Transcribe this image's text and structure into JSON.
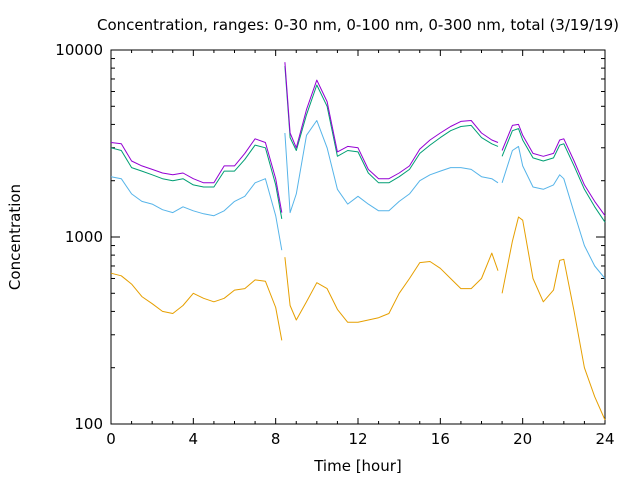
{
  "chart_data": {
    "type": "line",
    "title": "Concentration, ranges: 0-30 nm, 0-100 nm, 0-300 nm, total (3/19/19)",
    "xlabel": "Time [hour]",
    "ylabel": "Concentration",
    "xlim": [
      0,
      24
    ],
    "ylim": [
      100,
      10000
    ],
    "yscale": "log",
    "grid": false,
    "x_ticks": [
      "0",
      "4",
      "8",
      "12",
      "16",
      "20",
      "24"
    ],
    "y_ticks": [
      "100",
      "1000",
      "10000"
    ],
    "colors": {
      "range_0_30": "#e69f00",
      "range_0_100": "#56b4e9",
      "range_0_300": "#009e73",
      "total": "#9400d3"
    },
    "series": [
      {
        "color_key": "range_0_30",
        "x": [
          0,
          0.5,
          1,
          1.5,
          2,
          2.5,
          3,
          3.5,
          4,
          4.5,
          5,
          5.5,
          6,
          6.5,
          7,
          7.5,
          8,
          8.3,
          null,
          8.45,
          8.7,
          9,
          9.5,
          10,
          10.5,
          11,
          11.5,
          12,
          12.5,
          13,
          13.5,
          14,
          14.5,
          15,
          15.5,
          16,
          16.5,
          17,
          17.5,
          18,
          18.5,
          18.8,
          null,
          19,
          19.5,
          19.8,
          20,
          20.5,
          21,
          21.5,
          21.8,
          22,
          22.5,
          23,
          23.5,
          24
        ],
        "y": [
          640,
          620,
          560,
          480,
          440,
          400,
          390,
          430,
          500,
          470,
          450,
          470,
          520,
          530,
          590,
          580,
          420,
          280,
          null,
          780,
          430,
          360,
          450,
          570,
          530,
          410,
          350,
          350,
          360,
          370,
          390,
          500,
          600,
          730,
          740,
          680,
          600,
          530,
          530,
          600,
          820,
          660,
          null,
          500,
          950,
          1280,
          1230,
          600,
          450,
          520,
          750,
          760,
          400,
          200,
          140,
          105
        ]
      },
      {
        "color_key": "range_0_100",
        "x": [
          0,
          0.5,
          1,
          1.5,
          2,
          2.5,
          3,
          3.5,
          4,
          4.5,
          5,
          5.5,
          6,
          6.5,
          7,
          7.5,
          8,
          8.3,
          null,
          8.45,
          8.7,
          9,
          9.5,
          10,
          10.5,
          11,
          11.5,
          12,
          12.5,
          13,
          13.5,
          14,
          14.5,
          15,
          15.5,
          16,
          16.5,
          17,
          17.5,
          18,
          18.5,
          18.8,
          null,
          19,
          19.5,
          19.8,
          20,
          20.5,
          21,
          21.5,
          21.8,
          22,
          22.5,
          23,
          23.5,
          24
        ],
        "y": [
          2100,
          2050,
          1700,
          1550,
          1500,
          1400,
          1350,
          1450,
          1380,
          1330,
          1300,
          1380,
          1550,
          1650,
          1950,
          2050,
          1300,
          850,
          null,
          3600,
          1350,
          1700,
          3500,
          4200,
          3000,
          1800,
          1500,
          1650,
          1500,
          1380,
          1380,
          1550,
          1700,
          2000,
          2150,
          2250,
          2350,
          2350,
          2300,
          2100,
          2050,
          1950,
          null,
          1950,
          2900,
          3050,
          2400,
          1850,
          1800,
          1900,
          2150,
          2050,
          1350,
          900,
          700,
          600
        ]
      },
      {
        "color_key": "range_0_300",
        "x": [
          0,
          0.5,
          1,
          1.5,
          2,
          2.5,
          3,
          3.5,
          4,
          4.5,
          5,
          5.5,
          6,
          6.5,
          7,
          7.5,
          8,
          8.3,
          null,
          8.45,
          8.7,
          9,
          9.5,
          10,
          10.5,
          11,
          11.5,
          12,
          12.5,
          13,
          13.5,
          14,
          14.5,
          15,
          15.5,
          16,
          16.5,
          17,
          17.5,
          18,
          18.5,
          18.8,
          null,
          19,
          19.5,
          19.8,
          20,
          20.5,
          21,
          21.5,
          21.8,
          22,
          22.5,
          23,
          23.5,
          24
        ],
        "y": [
          3000,
          2900,
          2350,
          2250,
          2150,
          2050,
          2000,
          2050,
          1900,
          1850,
          1850,
          2250,
          2250,
          2600,
          3100,
          3000,
          1900,
          1250,
          null,
          8200,
          3400,
          2900,
          4500,
          6500,
          5000,
          2700,
          2900,
          2850,
          2200,
          1950,
          1950,
          2100,
          2300,
          2800,
          3100,
          3400,
          3700,
          3900,
          3950,
          3400,
          3150,
          3050,
          null,
          2700,
          3700,
          3800,
          3300,
          2650,
          2550,
          2650,
          3100,
          3150,
          2400,
          1800,
          1450,
          1200
        ]
      },
      {
        "color_key": "total",
        "x": [
          0,
          0.5,
          1,
          1.5,
          2,
          2.5,
          3,
          3.5,
          4,
          4.5,
          5,
          5.5,
          6,
          6.5,
          7,
          7.5,
          8,
          8.3,
          null,
          8.45,
          8.7,
          9,
          9.5,
          10,
          10.5,
          11,
          11.5,
          12,
          12.5,
          13,
          13.5,
          14,
          14.5,
          15,
          15.5,
          16,
          16.5,
          17,
          17.5,
          18,
          18.5,
          18.8,
          null,
          19,
          19.5,
          19.8,
          20,
          20.5,
          21,
          21.5,
          21.8,
          22,
          22.5,
          23,
          23.5,
          24
        ],
        "y": [
          3200,
          3150,
          2550,
          2400,
          2300,
          2200,
          2150,
          2200,
          2050,
          1950,
          1950,
          2400,
          2400,
          2800,
          3350,
          3200,
          2050,
          1350,
          null,
          8600,
          3600,
          3000,
          4800,
          6900,
          5300,
          2850,
          3050,
          3000,
          2300,
          2050,
          2050,
          2200,
          2400,
          2950,
          3300,
          3600,
          3900,
          4150,
          4200,
          3600,
          3300,
          3200,
          null,
          2900,
          3950,
          4000,
          3500,
          2800,
          2700,
          2800,
          3300,
          3350,
          2550,
          1900,
          1550,
          1300
        ]
      }
    ]
  }
}
